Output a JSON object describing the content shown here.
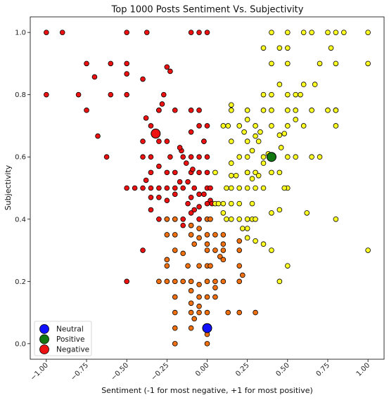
{
  "chart_data": {
    "type": "scatter",
    "title": "Top 1000 Posts Sentiment Vs. Subjectivity",
    "xlabel": "Sentiment (-1 for most negative, +1 for most positive)",
    "ylabel": "Subjectivity",
    "xlim": [
      -1.1,
      1.1
    ],
    "ylim": [
      -0.05,
      1.05
    ],
    "x_ticks": [
      "−1.00",
      "−0.75",
      "−0.50",
      "−0.25",
      "0.00",
      "0.25",
      "0.50",
      "0.75",
      "1.00"
    ],
    "x_tick_values": [
      -1.0,
      -0.75,
      -0.5,
      -0.25,
      0.0,
      0.25,
      0.5,
      0.75,
      1.0
    ],
    "y_ticks": [
      "0.0",
      "0.2",
      "0.4",
      "0.6",
      "0.8",
      "1.0"
    ],
    "y_tick_values": [
      0.0,
      0.2,
      0.4,
      0.6,
      0.8,
      1.0
    ],
    "grid": false,
    "legend_position": "bottom-left",
    "colors": {
      "negative": "#ee1111",
      "positive": "#ffff22",
      "low_subjectivity": "#f07010",
      "neutral_marker": "#1111ff",
      "positive_marker": "#117711",
      "negative_marker": "#ee1111",
      "edge": "#000000"
    },
    "legend": [
      {
        "label": "Neutral",
        "color": "#1111ff"
      },
      {
        "label": "Positive",
        "color": "#117711"
      },
      {
        "label": "Negative",
        "color": "#ee1111"
      }
    ],
    "centroids": [
      {
        "name": "Neutral",
        "x": 0.0,
        "y": 0.05,
        "color": "#1111ff"
      },
      {
        "name": "Positive",
        "x": 0.4,
        "y": 0.6,
        "color": "#117711"
      },
      {
        "name": "Negative",
        "x": -0.32,
        "y": 0.675,
        "color": "#ee1111"
      }
    ],
    "series": [
      {
        "group": "negative",
        "color": "#ee1111",
        "points": [
          [
            -1.0,
            1.0
          ],
          [
            -0.9,
            1.0
          ],
          [
            -0.5,
            1.0
          ],
          [
            -0.375,
            1.0
          ],
          [
            -0.1,
            1.0
          ],
          [
            -0.05,
            1.0
          ],
          [
            0.0,
            1.0
          ],
          [
            -1.0,
            0.8
          ],
          [
            -0.8,
            0.8
          ],
          [
            -0.6,
            0.8
          ],
          [
            -0.5,
            0.8
          ],
          [
            -0.75,
            0.9
          ],
          [
            -0.6,
            0.9
          ],
          [
            -0.5,
            0.9
          ],
          [
            -0.7,
            0.857
          ],
          [
            -0.5,
            0.867
          ],
          [
            -0.4,
            0.85
          ],
          [
            -0.25,
            0.889
          ],
          [
            -0.23,
            0.875
          ],
          [
            -0.75,
            0.75
          ],
          [
            -0.3,
            0.75
          ],
          [
            -0.2,
            0.75
          ],
          [
            -0.27,
            0.8
          ],
          [
            -0.68,
            0.667
          ],
          [
            -0.35,
            0.7
          ],
          [
            -0.38,
            0.725
          ],
          [
            -0.3,
            0.75
          ],
          [
            -0.28,
            0.77
          ],
          [
            -0.1,
            0.75
          ],
          [
            -0.05,
            0.75
          ],
          [
            -0.625,
            0.6
          ],
          [
            -0.4,
            0.6
          ],
          [
            -0.35,
            0.6
          ],
          [
            -0.4,
            0.65
          ],
          [
            -0.3,
            0.65
          ],
          [
            -0.25,
            0.65
          ],
          [
            -0.23,
            0.6
          ],
          [
            -0.1,
            0.68
          ],
          [
            -0.05,
            0.7
          ],
          [
            0.0,
            0.7
          ],
          [
            -0.15,
            0.6
          ],
          [
            -0.2,
            0.55
          ],
          [
            -0.25,
            0.55
          ],
          [
            -0.3,
            0.57
          ],
          [
            -0.35,
            0.55
          ],
          [
            -0.4,
            0.5
          ],
          [
            -0.45,
            0.5
          ],
          [
            -0.5,
            0.5
          ],
          [
            -0.35,
            0.5
          ],
          [
            -0.3,
            0.5
          ],
          [
            -0.25,
            0.5
          ],
          [
            -0.2,
            0.5
          ],
          [
            -0.15,
            0.5
          ],
          [
            -0.1,
            0.6
          ],
          [
            -0.05,
            0.6
          ],
          [
            0.0,
            0.6
          ],
          [
            -0.1,
            0.55
          ],
          [
            -0.05,
            0.55
          ],
          [
            0.0,
            0.55
          ],
          [
            -0.02,
            0.65
          ],
          [
            -0.38,
            0.525
          ],
          [
            -0.35,
            0.47
          ],
          [
            -0.3,
            0.47
          ],
          [
            -0.25,
            0.46
          ],
          [
            -0.2,
            0.48
          ],
          [
            -0.17,
            0.52
          ],
          [
            -0.12,
            0.52
          ],
          [
            -0.08,
            0.5
          ],
          [
            -0.05,
            0.48
          ],
          [
            0.0,
            0.5
          ],
          [
            0.02,
            0.5
          ],
          [
            -0.35,
            0.43
          ],
          [
            -0.3,
            0.4
          ],
          [
            -0.25,
            0.4
          ],
          [
            -0.2,
            0.4
          ],
          [
            -0.15,
            0.4
          ],
          [
            -0.1,
            0.42
          ],
          [
            -0.05,
            0.4
          ],
          [
            0.0,
            0.4
          ],
          [
            -0.12,
            0.45
          ],
          [
            -0.1,
            0.47
          ],
          [
            -0.08,
            0.43
          ],
          [
            -0.05,
            0.44
          ],
          [
            0.0,
            0.45
          ],
          [
            -0.02,
            0.48
          ],
          [
            0.02,
            0.46
          ],
          [
            -0.4,
            0.3
          ],
          [
            -0.5,
            0.2
          ],
          [
            -0.15,
            0.38
          ],
          [
            -0.1,
            0.38
          ],
          [
            -0.02,
            0.65
          ],
          [
            -0.16,
            0.62
          ],
          [
            -0.17,
            0.63
          ],
          [
            -0.13,
            0.58
          ],
          [
            -0.09,
            0.56
          ],
          [
            0.03,
            0.45
          ]
        ]
      },
      {
        "group": "low_subjectivity",
        "color": "#f07010",
        "points": [
          [
            -0.25,
            0.4
          ],
          [
            -0.2,
            0.4
          ],
          [
            -0.1,
            0.38
          ],
          [
            -0.05,
            0.37
          ],
          [
            0.0,
            0.4
          ],
          [
            0.02,
            0.4
          ],
          [
            -0.25,
            0.35
          ],
          [
            -0.2,
            0.35
          ],
          [
            -0.1,
            0.35
          ],
          [
            -0.05,
            0.34
          ],
          [
            0.0,
            0.35
          ],
          [
            0.05,
            0.35
          ],
          [
            0.1,
            0.35
          ],
          [
            -0.2,
            0.3
          ],
          [
            -0.15,
            0.29
          ],
          [
            0.0,
            0.3
          ],
          [
            0.05,
            0.3
          ],
          [
            0.1,
            0.3
          ],
          [
            0.2,
            0.3
          ],
          [
            -0.25,
            0.27
          ],
          [
            -0.25,
            0.25
          ],
          [
            -0.12,
            0.25
          ],
          [
            -0.05,
            0.25
          ],
          [
            0.0,
            0.25
          ],
          [
            0.02,
            0.25
          ],
          [
            0.08,
            0.28
          ],
          [
            0.1,
            0.27
          ],
          [
            0.2,
            0.25
          ],
          [
            -0.3,
            0.2
          ],
          [
            -0.25,
            0.2
          ],
          [
            -0.2,
            0.2
          ],
          [
            -0.15,
            0.2
          ],
          [
            -0.1,
            0.2
          ],
          [
            -0.05,
            0.19
          ],
          [
            0.0,
            0.2
          ],
          [
            0.05,
            0.2
          ],
          [
            0.1,
            0.2
          ],
          [
            0.2,
            0.2
          ],
          [
            -0.2,
            0.15
          ],
          [
            -0.1,
            0.17
          ],
          [
            -0.05,
            0.15
          ],
          [
            0.0,
            0.15
          ],
          [
            0.05,
            0.15
          ],
          [
            -0.2,
            0.1
          ],
          [
            -0.1,
            0.1
          ],
          [
            -0.05,
            0.12
          ],
          [
            0.0,
            0.1
          ],
          [
            0.0,
            0.05
          ],
          [
            0.13,
            0.1
          ],
          [
            0.2,
            0.1
          ],
          [
            0.3,
            0.1
          ],
          [
            -0.2,
            0.05
          ],
          [
            -0.1,
            0.05
          ],
          [
            -0.08,
            0.08
          ],
          [
            -0.2,
            0.0
          ],
          [
            0.0,
            0.0
          ],
          [
            0.0,
            0.03
          ],
          [
            -0.05,
            0.1
          ],
          [
            0.05,
            0.18
          ],
          [
            -0.1,
            0.13
          ],
          [
            0.1,
            0.32
          ],
          [
            0.2,
            0.33
          ],
          [
            0.22,
            0.22
          ],
          [
            0.0,
            0.32
          ],
          [
            -0.08,
            0.32
          ]
        ]
      },
      {
        "group": "positive",
        "color": "#ffff22",
        "points": [
          [
            0.4,
            1.0
          ],
          [
            0.5,
            1.0
          ],
          [
            0.6,
            1.0
          ],
          [
            0.65,
            1.0
          ],
          [
            0.75,
            1.0
          ],
          [
            0.8,
            1.0
          ],
          [
            0.85,
            1.0
          ],
          [
            1.0,
            1.0
          ],
          [
            0.45,
            0.95
          ],
          [
            0.5,
            0.95
          ],
          [
            0.77,
            0.95
          ],
          [
            0.35,
            0.95
          ],
          [
            0.4,
            0.9
          ],
          [
            0.5,
            0.9
          ],
          [
            0.7,
            0.9
          ],
          [
            0.8,
            0.9
          ],
          [
            1.0,
            0.9
          ],
          [
            0.35,
            0.8
          ],
          [
            0.4,
            0.8
          ],
          [
            0.5,
            0.8
          ],
          [
            0.55,
            0.8
          ],
          [
            0.6,
            0.833
          ],
          [
            0.67,
            0.833
          ],
          [
            0.58,
            0.8
          ],
          [
            0.45,
            0.833
          ],
          [
            0.15,
            0.767
          ],
          [
            0.15,
            0.75
          ],
          [
            0.25,
            0.75
          ],
          [
            0.35,
            0.75
          ],
          [
            0.4,
            0.75
          ],
          [
            0.5,
            0.75
          ],
          [
            0.55,
            0.75
          ],
          [
            0.65,
            0.75
          ],
          [
            0.75,
            0.75
          ],
          [
            0.8,
            0.75
          ],
          [
            0.5,
            0.7
          ],
          [
            0.55,
            0.72
          ],
          [
            0.6,
            0.7
          ],
          [
            0.8,
            0.7
          ],
          [
            0.3,
            0.7
          ],
          [
            0.4,
            0.7
          ],
          [
            0.45,
            0.67
          ],
          [
            0.1,
            0.7
          ],
          [
            0.13,
            0.7
          ],
          [
            0.2,
            0.7
          ],
          [
            0.25,
            0.72
          ],
          [
            0.25,
            0.65
          ],
          [
            0.32,
            0.65
          ],
          [
            0.3,
            0.667
          ],
          [
            0.15,
            0.65
          ],
          [
            0.2,
            0.6
          ],
          [
            0.25,
            0.6
          ],
          [
            0.28,
            0.62
          ],
          [
            0.35,
            0.6
          ],
          [
            0.38,
            0.61
          ],
          [
            0.4,
            0.6
          ],
          [
            0.5,
            0.6
          ],
          [
            0.55,
            0.6
          ],
          [
            0.65,
            0.6
          ],
          [
            0.7,
            0.6
          ],
          [
            0.35,
            0.58
          ],
          [
            0.45,
            0.55
          ],
          [
            0.3,
            0.55
          ],
          [
            0.25,
            0.55
          ],
          [
            0.18,
            0.54
          ],
          [
            0.15,
            0.54
          ],
          [
            0.05,
            0.55
          ],
          [
            0.12,
            0.5
          ],
          [
            0.15,
            0.5
          ],
          [
            0.2,
            0.5
          ],
          [
            0.25,
            0.5
          ],
          [
            0.3,
            0.5
          ],
          [
            0.35,
            0.5
          ],
          [
            0.5,
            0.5
          ],
          [
            0.28,
            0.53
          ],
          [
            0.32,
            0.54
          ],
          [
            0.05,
            0.45
          ],
          [
            0.1,
            0.45
          ],
          [
            0.15,
            0.45
          ],
          [
            0.2,
            0.45
          ],
          [
            0.28,
            0.45
          ],
          [
            0.4,
            0.42
          ],
          [
            0.45,
            0.43
          ],
          [
            0.62,
            0.42
          ],
          [
            0.8,
            0.4
          ],
          [
            0.07,
            0.45
          ],
          [
            0.12,
            0.4
          ],
          [
            0.15,
            0.4
          ],
          [
            0.2,
            0.4
          ],
          [
            0.25,
            0.4
          ],
          [
            0.28,
            0.4
          ],
          [
            0.3,
            0.4
          ],
          [
            0.22,
            0.37
          ],
          [
            0.25,
            0.37
          ],
          [
            0.25,
            0.34
          ],
          [
            0.3,
            0.33
          ],
          [
            0.35,
            0.32
          ],
          [
            0.4,
            0.3
          ],
          [
            0.5,
            0.25
          ],
          [
            0.45,
            0.2
          ],
          [
            1.0,
            0.3
          ],
          [
            0.4,
            0.55
          ],
          [
            0.48,
            0.5
          ],
          [
            0.25,
            0.55
          ],
          [
            0.23,
            0.68
          ],
          [
            0.33,
            0.68
          ],
          [
            0.48,
            0.675
          ],
          [
            0.46,
            0.63
          ],
          [
            0.1,
            0.42
          ],
          [
            0.15,
            0.58
          ],
          [
            0.8,
            0.75
          ]
        ]
      }
    ]
  }
}
